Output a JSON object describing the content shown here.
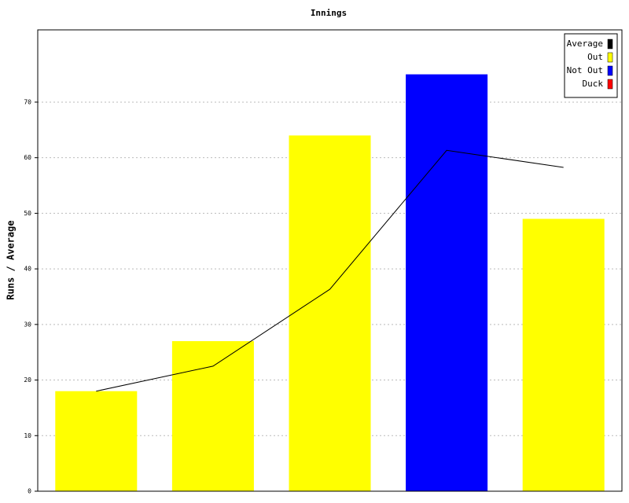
{
  "chart_data": {
    "type": "bar",
    "title": "Innings",
    "y_label": "Runs / Average",
    "categories": [
      null,
      null,
      null,
      null,
      null
    ],
    "series": [
      {
        "name": "Average",
        "type": "line",
        "color": "#000000",
        "values": [
          18,
          22.5,
          36.33,
          61.33,
          58.25
        ]
      },
      {
        "name": "Out",
        "type": "bar",
        "color": "#ffff00",
        "values": [
          18,
          27,
          64,
          null,
          49
        ]
      },
      {
        "name": "Not Out",
        "type": "bar",
        "color": "#0000ff",
        "values": [
          null,
          null,
          null,
          75,
          null
        ]
      },
      {
        "name": "Duck",
        "type": "bar",
        "color": "#ff0000",
        "values": [
          null,
          null,
          null,
          null,
          null
        ]
      }
    ],
    "ylim": [
      0,
      83
    ],
    "yticks": [
      0,
      10,
      20,
      30,
      40,
      50,
      60,
      70
    ],
    "grid": true,
    "legend": "top-right"
  }
}
